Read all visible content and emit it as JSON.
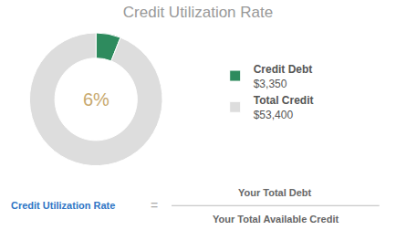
{
  "chart_data": {
    "type": "donut",
    "title": "Credit Utilization Rate",
    "categories": [
      "Credit Debt",
      "Total Credit"
    ],
    "values": [
      6,
      94
    ],
    "colors": [
      "#2e8b5e",
      "#dddddd"
    ],
    "center_label": "6%",
    "amount_labels": [
      "$3,350",
      "$53,400"
    ],
    "legend": "right",
    "formula": {
      "left": "Credit Utilization Rate",
      "sign": "=",
      "numerator": "Your Total Debt",
      "denominator": "Your Total Available Credit"
    }
  }
}
